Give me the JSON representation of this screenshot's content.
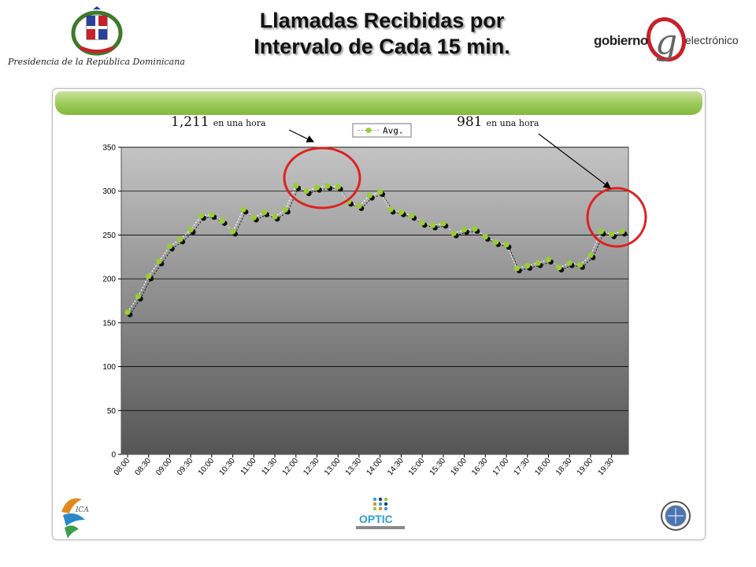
{
  "header": {
    "caption": "Presidencia de la República Dominicana",
    "title_line1": "Llamadas Recibidas por",
    "title_line2": "Intervalo de Cada 15 min.",
    "brand_left": "gobierno",
    "brand_letter": "g",
    "brand_right": "electrónico"
  },
  "annotations": {
    "left_value": "1,211",
    "left_text": "en una hora",
    "right_value": "981",
    "right_text": "en una hora"
  },
  "footer": {
    "ica_label": "ICA",
    "optic_label": "OPTIC"
  },
  "colors": {
    "accent_green": "#9ac857",
    "avg_marker": "#9acd32",
    "shadow_marker": "#111111",
    "highlight_circle": "#e02020"
  },
  "chart_data": {
    "type": "line",
    "title": "",
    "xlabel": "",
    "ylabel": "",
    "ylim": [
      0,
      350
    ],
    "yticks": [
      0,
      50,
      100,
      150,
      200,
      250,
      300,
      350
    ],
    "legend": {
      "position": "top-center",
      "entries": [
        "Avg."
      ]
    },
    "grid": true,
    "x_tick_labels": [
      "08:00",
      "08:30",
      "09:00",
      "09:30",
      "10:00",
      "10:30",
      "11:00",
      "11:30",
      "12:00",
      "12:30",
      "13:00",
      "13:30",
      "14:00",
      "14:30",
      "15:00",
      "15:30",
      "16:00",
      "16:30",
      "17:00",
      "17:30",
      "18:00",
      "18:30",
      "19:00",
      "19:30"
    ],
    "x": [
      "08:00",
      "08:15",
      "08:30",
      "08:45",
      "09:00",
      "09:15",
      "09:30",
      "09:45",
      "10:00",
      "10:15",
      "10:30",
      "10:45",
      "11:00",
      "11:15",
      "11:30",
      "11:45",
      "12:00",
      "12:15",
      "12:30",
      "12:45",
      "13:00",
      "13:15",
      "13:30",
      "13:45",
      "14:00",
      "14:15",
      "14:30",
      "14:45",
      "15:00",
      "15:15",
      "15:30",
      "15:45",
      "16:00",
      "16:15",
      "16:30",
      "16:45",
      "17:00",
      "17:15",
      "17:30",
      "17:45",
      "18:00",
      "18:15",
      "18:30",
      "18:45",
      "19:00",
      "19:15",
      "19:30",
      "19:45"
    ],
    "series": [
      {
        "name": "Avg.",
        "values": [
          162,
          180,
          203,
          220,
          237,
          245,
          256,
          272,
          273,
          266,
          254,
          279,
          270,
          276,
          271,
          279,
          306,
          300,
          304,
          306,
          305,
          288,
          283,
          295,
          299,
          279,
          276,
          272,
          264,
          261,
          263,
          252,
          256,
          257,
          248,
          242,
          239,
          212,
          215,
          218,
          222,
          213,
          218,
          216,
          227,
          254,
          251,
          254
        ]
      }
    ]
  }
}
